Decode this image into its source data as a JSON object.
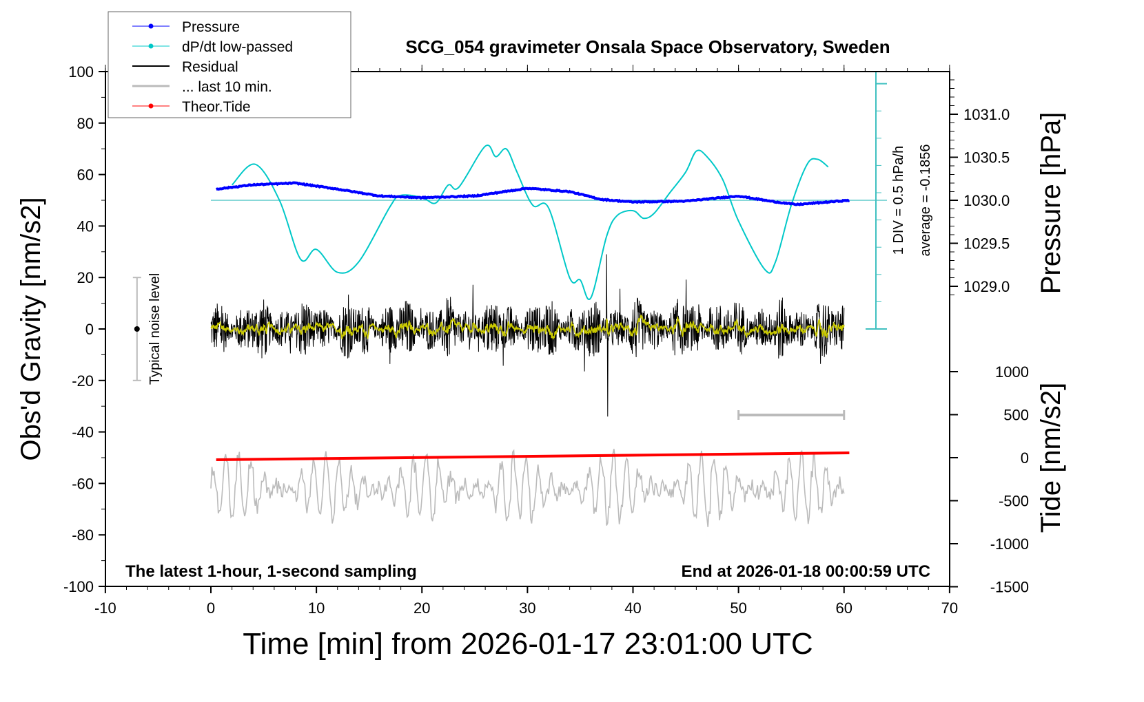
{
  "chart_data": {
    "type": "line",
    "title": "SCG_054 gravimeter Onsala Space Observatory, Sweden",
    "xlabel": "Time [min] from 2026-01-17 23:01:00 UTC",
    "ylabel": "Obs'd Gravity [nm/s2]",
    "ylabel_right_top": "Pressure [hPa]",
    "ylabel_right_bottom": "Tide [nm/s2]",
    "xlim": [
      -10,
      70
    ],
    "ylim": [
      -100,
      100
    ],
    "xticks": [
      "-10",
      "0",
      "10",
      "20",
      "30",
      "40",
      "50",
      "60",
      "70"
    ],
    "yticks": [
      "100",
      "80",
      "60",
      "40",
      "20",
      "0",
      "-20",
      "-40",
      "-60",
      "-80",
      "-100"
    ],
    "pressure_ticks": [
      "1031.0",
      "1030.5",
      "1030.0",
      "1029.5",
      "1029.0"
    ],
    "tide_ticks": [
      "1000",
      "500",
      "0",
      "-500",
      "-1000",
      "-1500"
    ],
    "legend": {
      "placement": "top-left",
      "entries": [
        {
          "label": "Pressure",
          "color": "#0000ff"
        },
        {
          "label": "dP/dt low-passed",
          "color": "#00c8c8"
        },
        {
          "label": "Residual",
          "color": "#000000"
        },
        {
          "label": "... last 10 min.",
          "color": "#bbbbbb"
        },
        {
          "label": "Theor.Tide",
          "color": "#ff0000"
        }
      ]
    },
    "annotations": {
      "bottom_left": "The latest 1-hour, 1-second sampling",
      "bottom_right": "End at 2026-01-18 00:00:59 UTC",
      "noise": "Typical noise level",
      "div": "1 DIV = 0.5 hPa/h",
      "average": "average = -0.1856"
    },
    "noise_level": {
      "x": -7,
      "range": [
        -20,
        20
      ]
    },
    "last10_window": [
      50,
      60
    ],
    "pressure": {
      "t": [
        0.5,
        4,
        8,
        12,
        16,
        20,
        25,
        30,
        34,
        37,
        40,
        45,
        50,
        53,
        55.5,
        60.5
      ],
      "hPa": [
        1030.13,
        1030.18,
        1030.2,
        1030.13,
        1030.05,
        1030.03,
        1030.05,
        1030.14,
        1030.1,
        1030.01,
        1029.98,
        1029.99,
        1030.05,
        1029.99,
        1029.95,
        1030.0
      ]
    },
    "dpdt": {
      "t": [
        2,
        4.2,
        6.5,
        8.5,
        10,
        12,
        14,
        17,
        18,
        20,
        21.3,
        22.5,
        23.5,
        26,
        27,
        28,
        29,
        30.5,
        32,
        34,
        35,
        36,
        37.5,
        38.5,
        40,
        41,
        42,
        43.5,
        45,
        46,
        47,
        48.5,
        50,
        52.5,
        53.5,
        55,
        56.5,
        57.5,
        58.5
      ],
      "hPa_per_h": [
        0.28,
        0.66,
        0,
        -1.08,
        -0.9,
        -1.32,
        -1.13,
        -0.11,
        0.09,
        0.05,
        -0.05,
        0.28,
        0.24,
        0.99,
        0.8,
        0.94,
        0.52,
        -0.09,
        -0.14,
        -1.42,
        -1.46,
        -1.79,
        -0.66,
        -0.28,
        -0.19,
        -0.33,
        -0.24,
        0.14,
        0.52,
        0.9,
        0.8,
        0.38,
        -0.38,
        -1.27,
        -1.13,
        -0.09,
        0.66,
        0.75,
        0.61
      ]
    },
    "tide": {
      "t": [
        0.5,
        60.5
      ],
      "nm_s2": [
        -24,
        56
      ]
    },
    "residual": {
      "t_range": [
        0,
        60
      ],
      "approx_std": 8,
      "extremes": [
        29,
        -34
      ]
    },
    "last10": {
      "offset": -62,
      "approx_amplitude": 12
    }
  }
}
